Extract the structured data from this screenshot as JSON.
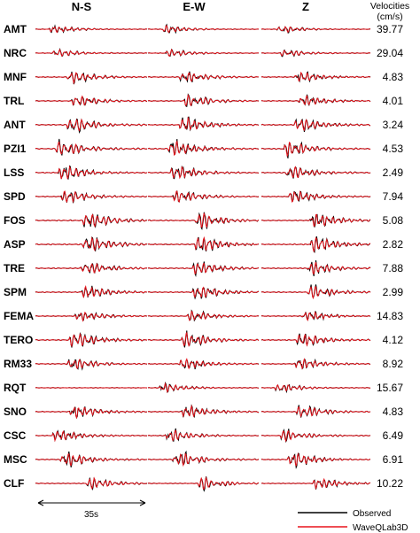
{
  "chart_data": {
    "type": "line",
    "title": "",
    "components": [
      "N-S",
      "E-W",
      "Z"
    ],
    "velocity_header": [
      "Velocities",
      "(cm/s)"
    ],
    "stations": [
      {
        "name": "AMT",
        "velocity": "39.77"
      },
      {
        "name": "NRC",
        "velocity": "29.04"
      },
      {
        "name": "MNF",
        "velocity": "4.83"
      },
      {
        "name": "TRL",
        "velocity": "4.01"
      },
      {
        "name": "ANT",
        "velocity": "3.24"
      },
      {
        "name": "PZI1",
        "velocity": "4.53"
      },
      {
        "name": "LSS",
        "velocity": "2.49"
      },
      {
        "name": "SPD",
        "velocity": "7.94"
      },
      {
        "name": "FOS",
        "velocity": "5.08"
      },
      {
        "name": "ASP",
        "velocity": "2.82"
      },
      {
        "name": "TRE",
        "velocity": "7.88"
      },
      {
        "name": "SPM",
        "velocity": "2.99"
      },
      {
        "name": "FEMA",
        "velocity": "14.83"
      },
      {
        "name": "TERO",
        "velocity": "4.12"
      },
      {
        "name": "RM33",
        "velocity": "8.92"
      },
      {
        "name": "RQT",
        "velocity": "15.67"
      },
      {
        "name": "SNO",
        "velocity": "4.83"
      },
      {
        "name": "CSC",
        "velocity": "6.49"
      },
      {
        "name": "MSC",
        "velocity": "6.91"
      },
      {
        "name": "CLF",
        "velocity": "10.22"
      }
    ],
    "scale_bar_label": "35s",
    "legend": {
      "placement": "bottom-right",
      "entries": [
        {
          "name": "Observed",
          "color": "#000000"
        },
        {
          "name": "WaveQLab3D",
          "color": "#e8141c"
        }
      ]
    }
  }
}
